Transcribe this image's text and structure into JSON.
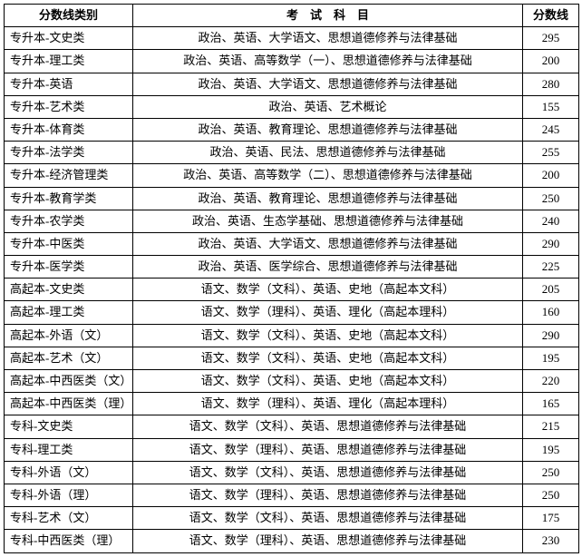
{
  "table": {
    "headers": {
      "category": "分数线类别",
      "subjects": "考　试　科　目",
      "score": "分数线"
    },
    "rows": [
      {
        "category": "专升本-文史类",
        "subjects": "政治、英语、大学语文、思想道德修养与法律基础",
        "score": "295"
      },
      {
        "category": "专升本-理工类",
        "subjects": "政治、英语、高等数学（一）、思想道德修养与法律基础",
        "score": "200"
      },
      {
        "category": "专升本-英语",
        "subjects": "政治、英语、大学语文、思想道德修养与法律基础",
        "score": "280"
      },
      {
        "category": "专升本-艺术类",
        "subjects": "政治、英语、艺术概论",
        "score": "155"
      },
      {
        "category": "专升本-体育类",
        "subjects": "政治、英语、教育理论、思想道德修养与法律基础",
        "score": "245"
      },
      {
        "category": "专升本-法学类",
        "subjects": "政治、英语、民法、思想道德修养与法律基础",
        "score": "255"
      },
      {
        "category": "专升本-经济管理类",
        "subjects": "政治、英语、高等数学（二）、思想道德修养与法律基础",
        "score": "200"
      },
      {
        "category": "专升本-教育学类",
        "subjects": "政治、英语、教育理论、思想道德修养与法律基础",
        "score": "250"
      },
      {
        "category": "专升本-农学类",
        "subjects": "政治、英语、生态学基础、思想道德修养与法律基础",
        "score": "240"
      },
      {
        "category": "专升本-中医类",
        "subjects": "政治、英语、大学语文、思想道德修养与法律基础",
        "score": "290"
      },
      {
        "category": "专升本-医学类",
        "subjects": "政治、英语、医学综合、思想道德修养与法律基础",
        "score": "225"
      },
      {
        "category": "高起本-文史类",
        "subjects": "语文、数学（文科）、英语、史地（高起本文科）",
        "score": "205"
      },
      {
        "category": "高起本-理工类",
        "subjects": "语文、数学（理科）、英语、理化（高起本理科）",
        "score": "160"
      },
      {
        "category": "高起本-外语（文）",
        "subjects": "语文、数学（文科）、英语、史地（高起本文科）",
        "score": "290"
      },
      {
        "category": "高起本-艺术（文）",
        "subjects": "语文、数学（文科）、英语、史地（高起本文科）",
        "score": "195"
      },
      {
        "category": "高起本-中西医类（文）",
        "subjects": "语文、数学（文科）、英语、史地（高起本文科）",
        "score": "220"
      },
      {
        "category": "高起本-中西医类（理）",
        "subjects": "语文、数学（理科）、英语、理化（高起本理科）",
        "score": "165"
      },
      {
        "category": "专科-文史类",
        "subjects": "语文、数学（文科）、英语、思想道德修养与法律基础",
        "score": "215"
      },
      {
        "category": "专科-理工类",
        "subjects": "语文、数学（理科）、英语、思想道德修养与法律基础",
        "score": "195"
      },
      {
        "category": "专科-外语（文）",
        "subjects": "语文、数学（文科）、英语、思想道德修养与法律基础",
        "score": "250"
      },
      {
        "category": "专科-外语（理）",
        "subjects": "语文、数学（理科）、英语、思想道德修养与法律基础",
        "score": "250"
      },
      {
        "category": "专科-艺术（文）",
        "subjects": "语文、数学（文科）、英语、思想道德修养与法律基础",
        "score": "175"
      },
      {
        "category": "专科-中西医类（理）",
        "subjects": "语文、数学（理科）、英语、思想道德修养与法律基础",
        "score": "230"
      }
    ]
  }
}
